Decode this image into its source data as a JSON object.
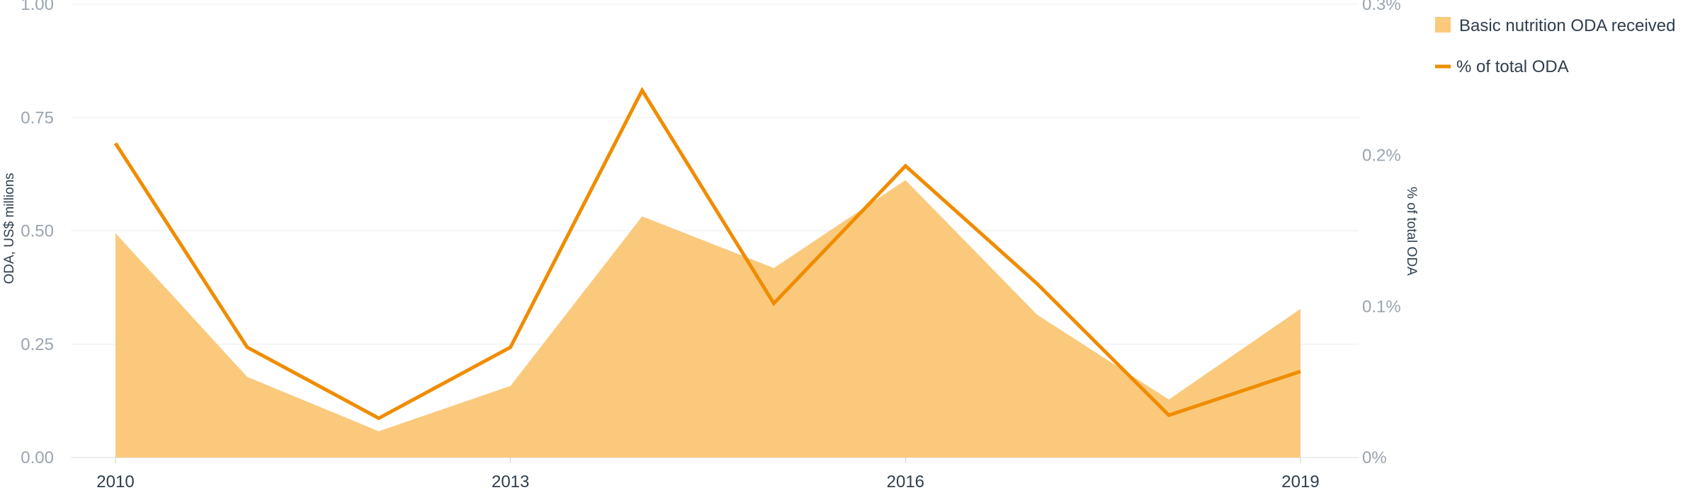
{
  "chart_data": {
    "type": "area+line",
    "x": [
      2010,
      2011,
      2012,
      2013,
      2014,
      2015,
      2016,
      2017,
      2018,
      2019
    ],
    "x_tick_labels": [
      "2010",
      "2013",
      "2016",
      "2019"
    ],
    "y_left": {
      "label": "ODA, US$ millions",
      "range": [
        0,
        1
      ],
      "ticks": [
        "0.00",
        "0.25",
        "0.50",
        "0.75",
        "1.00"
      ]
    },
    "y_right": {
      "label": "% of total ODA",
      "range": [
        0,
        0.3
      ],
      "ticks": [
        "0%",
        "0.1%",
        "0.2%",
        "0.3%"
      ]
    },
    "series": [
      {
        "name": "Basic nutrition ODA received",
        "type": "area",
        "axis": "left",
        "color": "#fbc97c",
        "values": [
          0.495,
          0.178,
          0.058,
          0.158,
          0.532,
          0.418,
          0.612,
          0.315,
          0.128,
          0.328
        ]
      },
      {
        "name": "% of total ODA",
        "type": "line",
        "axis": "right",
        "color": "#f08c00",
        "values": [
          0.208,
          0.073,
          0.026,
          0.073,
          0.243,
          0.102,
          0.193,
          0.115,
          0.028,
          0.057
        ]
      }
    ],
    "grid": true,
    "legend_position": "top-right"
  }
}
